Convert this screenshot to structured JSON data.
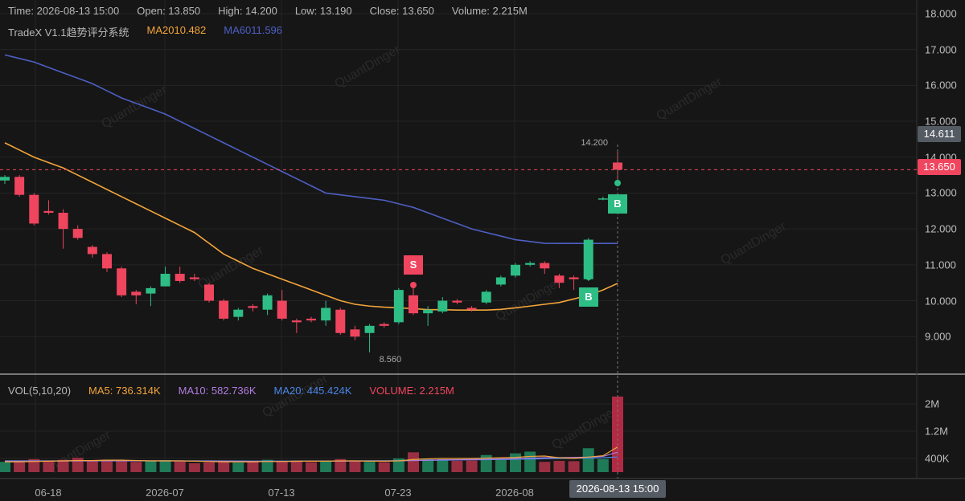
{
  "header": {
    "time_label": "Time: 2026-08-13 15:00",
    "open_label": "Open: 13.850",
    "high_label": "High: 14.200",
    "low_label": "Low: 13.190",
    "close_label": "Close: 13.650",
    "volume_label": "Volume: 2.215M"
  },
  "indicator": {
    "name": "TradeX V1.1趋势评分系统",
    "ma20_label": "MA20",
    "ma20_value": "10.482",
    "ma60_label": "MA60",
    "ma60_value": "11.596",
    "ma20_color": "#f4a53a",
    "ma60_color": "#4e5fc4"
  },
  "volume_header": {
    "name": "VOL(5,10,20)",
    "ma5": "MA5: 736.314K",
    "ma10": "MA10: 582.736K",
    "ma20": "MA20: 445.424K",
    "volume": "VOLUME: 2.215M",
    "ma5_color": "#f4a53a",
    "ma10_color": "#b17be0",
    "ma20_color": "#4a86e8",
    "volume_color": "#f0455e"
  },
  "price_axis": [
    "18.000",
    "17.000",
    "16.000",
    "15.000",
    "14.000",
    "13.000",
    "12.000",
    "11.000",
    "10.000",
    "9.000"
  ],
  "volume_axis": [
    "2M",
    "1.2M",
    "400K"
  ],
  "time_axis": [
    "06-18",
    "2026-07",
    "07-13",
    "07-23",
    "2026-08"
  ],
  "cursor_time": "2026-08-13 15:00",
  "high_tag": "14.611",
  "close_tag": "13.650",
  "high_marker": "14.200",
  "low_marker": "8.560",
  "signals": {
    "sell": "S",
    "buy": "B"
  },
  "watermark": "QuantDinger",
  "colors": {
    "up": "#2ebd85",
    "down": "#f0455e",
    "bg": "#161616",
    "grid": "#242424"
  },
  "chart_data": {
    "type": "candlestick",
    "price_range": [
      8.2,
      18.2
    ],
    "volume_range": [
      0,
      2400000
    ],
    "candles": [
      {
        "o": 13.35,
        "h": 13.5,
        "c": 13.45,
        "l": 13.25,
        "v": 300000
      },
      {
        "o": 13.45,
        "h": 13.5,
        "c": 12.95,
        "l": 12.9,
        "v": 290000
      },
      {
        "o": 12.95,
        "h": 13.0,
        "c": 12.15,
        "l": 12.1,
        "v": 380000
      },
      {
        "o": 12.5,
        "h": 12.8,
        "c": 12.45,
        "l": 12.4,
        "v": 310000
      },
      {
        "o": 12.45,
        "h": 12.55,
        "c": 12.0,
        "l": 11.45,
        "v": 360000
      },
      {
        "o": 12.0,
        "h": 12.1,
        "c": 11.75,
        "l": 11.7,
        "v": 420000
      },
      {
        "o": 11.5,
        "h": 11.55,
        "c": 11.3,
        "l": 11.2,
        "v": 330000
      },
      {
        "o": 11.3,
        "h": 11.35,
        "c": 10.9,
        "l": 10.8,
        "v": 360000
      },
      {
        "o": 10.9,
        "h": 10.95,
        "c": 10.15,
        "l": 10.1,
        "v": 350000
      },
      {
        "o": 10.25,
        "h": 10.3,
        "c": 10.15,
        "l": 9.9,
        "v": 300000
      },
      {
        "o": 10.2,
        "h": 10.4,
        "c": 10.35,
        "l": 9.85,
        "v": 340000
      },
      {
        "o": 10.4,
        "h": 10.95,
        "c": 10.75,
        "l": 10.4,
        "v": 350000
      },
      {
        "o": 10.75,
        "h": 10.95,
        "c": 10.55,
        "l": 10.5,
        "v": 310000
      },
      {
        "o": 10.65,
        "h": 10.75,
        "c": 10.6,
        "l": 10.55,
        "v": 260000
      },
      {
        "o": 10.45,
        "h": 10.5,
        "c": 10.0,
        "l": 9.95,
        "v": 290000
      },
      {
        "o": 10.0,
        "h": 10.05,
        "c": 9.5,
        "l": 9.45,
        "v": 310000
      },
      {
        "o": 9.55,
        "h": 9.8,
        "c": 9.75,
        "l": 9.45,
        "v": 280000
      },
      {
        "o": 9.85,
        "h": 9.9,
        "c": 9.8,
        "l": 9.7,
        "v": 320000
      },
      {
        "o": 9.75,
        "h": 10.2,
        "c": 10.15,
        "l": 9.6,
        "v": 360000
      },
      {
        "o": 10.0,
        "h": 10.3,
        "c": 9.5,
        "l": 9.45,
        "v": 300000
      },
      {
        "o": 9.45,
        "h": 9.5,
        "c": 9.4,
        "l": 9.1,
        "v": 340000
      },
      {
        "o": 9.5,
        "h": 9.55,
        "c": 9.45,
        "l": 9.4,
        "v": 290000
      },
      {
        "o": 9.45,
        "h": 10.0,
        "c": 9.8,
        "l": 9.3,
        "v": 320000
      },
      {
        "o": 9.75,
        "h": 9.8,
        "c": 9.1,
        "l": 9.05,
        "v": 380000
      },
      {
        "o": 9.2,
        "h": 9.3,
        "c": 9.0,
        "l": 8.9,
        "v": 330000
      },
      {
        "o": 9.1,
        "h": 9.35,
        "c": 9.3,
        "l": 8.56,
        "v": 300000
      },
      {
        "o": 9.35,
        "h": 9.4,
        "c": 9.3,
        "l": 9.25,
        "v": 290000
      },
      {
        "o": 9.4,
        "h": 10.35,
        "c": 10.3,
        "l": 9.35,
        "v": 400000
      },
      {
        "o": 10.15,
        "h": 10.45,
        "c": 9.65,
        "l": 9.6,
        "v": 580000
      },
      {
        "o": 9.65,
        "h": 9.85,
        "c": 9.75,
        "l": 9.3,
        "v": 380000
      },
      {
        "o": 9.7,
        "h": 10.1,
        "c": 10.0,
        "l": 9.65,
        "v": 380000
      },
      {
        "o": 10.0,
        "h": 10.05,
        "c": 9.95,
        "l": 9.9,
        "v": 330000
      },
      {
        "o": 9.8,
        "h": 9.85,
        "c": 9.75,
        "l": 9.7,
        "v": 340000
      },
      {
        "o": 9.95,
        "h": 10.3,
        "c": 10.25,
        "l": 9.9,
        "v": 500000
      },
      {
        "o": 10.45,
        "h": 10.7,
        "c": 10.65,
        "l": 10.4,
        "v": 380000
      },
      {
        "o": 10.7,
        "h": 11.05,
        "c": 11.0,
        "l": 10.65,
        "v": 550000
      },
      {
        "o": 11.0,
        "h": 11.1,
        "c": 11.05,
        "l": 10.95,
        "v": 600000
      },
      {
        "o": 11.05,
        "h": 11.1,
        "c": 10.9,
        "l": 10.75,
        "v": 300000
      },
      {
        "o": 10.7,
        "h": 10.75,
        "c": 10.5,
        "l": 10.35,
        "v": 330000
      },
      {
        "o": 10.65,
        "h": 10.7,
        "c": 10.6,
        "l": 10.3,
        "v": 320000
      },
      {
        "o": 10.6,
        "h": 11.75,
        "c": 11.7,
        "l": 10.55,
        "v": 700000
      },
      {
        "o": 12.85,
        "h": 12.9,
        "c": 12.85,
        "l": 12.8,
        "v": 380000
      },
      {
        "o": 13.85,
        "h": 14.2,
        "c": 13.65,
        "l": 13.19,
        "v": 2215000
      }
    ],
    "ma20": [
      14.4,
      14.2,
      14.0,
      13.85,
      13.7,
      13.5,
      13.3,
      13.1,
      12.9,
      12.7,
      12.5,
      12.3,
      12.1,
      11.9,
      11.6,
      11.3,
      11.1,
      10.9,
      10.75,
      10.6,
      10.45,
      10.3,
      10.15,
      10.0,
      9.9,
      9.85,
      9.82,
      9.8,
      9.78,
      9.75,
      9.75,
      9.74,
      9.74,
      9.74,
      9.76,
      9.8,
      9.85,
      9.9,
      9.95,
      10.05,
      10.15,
      10.3,
      10.482
    ],
    "ma60": [
      16.85,
      16.75,
      16.65,
      16.5,
      16.35,
      16.2,
      16.05,
      15.85,
      15.65,
      15.5,
      15.35,
      15.2,
      15.0,
      14.8,
      14.6,
      14.4,
      14.2,
      14.0,
      13.8,
      13.6,
      13.4,
      13.2,
      13.0,
      12.95,
      12.9,
      12.85,
      12.8,
      12.7,
      12.6,
      12.45,
      12.3,
      12.15,
      12.0,
      11.9,
      11.8,
      11.7,
      11.65,
      11.6,
      11.596,
      11.596,
      11.596,
      11.596,
      11.596
    ],
    "vol_ma5": [
      300000,
      300000,
      310000,
      320000,
      330000,
      340000,
      340000,
      350000,
      350000,
      340000,
      330000,
      330000,
      330000,
      320000,
      310000,
      300000,
      300000,
      300000,
      310000,
      310000,
      320000,
      320000,
      320000,
      330000,
      330000,
      320000,
      320000,
      330000,
      370000,
      390000,
      400000,
      400000,
      400000,
      410000,
      420000,
      430000,
      460000,
      470000,
      420000,
      400000,
      440000,
      480000,
      736314
    ],
    "vol_ma10": [
      320000,
      320000,
      320000,
      325000,
      325000,
      330000,
      330000,
      335000,
      335000,
      335000,
      330000,
      330000,
      330000,
      325000,
      320000,
      320000,
      315000,
      315000,
      315000,
      315000,
      315000,
      320000,
      320000,
      320000,
      325000,
      325000,
      325000,
      330000,
      340000,
      350000,
      360000,
      365000,
      370000,
      375000,
      385000,
      395000,
      410000,
      420000,
      425000,
      430000,
      440000,
      460000,
      582736
    ],
    "vol_ma20": [
      330000,
      330000,
      330000,
      330000,
      330000,
      330000,
      330000,
      330000,
      330000,
      330000,
      330000,
      330000,
      330000,
      330000,
      330000,
      328000,
      326000,
      325000,
      325000,
      325000,
      325000,
      326000,
      327000,
      328000,
      330000,
      332000,
      334000,
      336000,
      340000,
      345000,
      350000,
      355000,
      360000,
      365000,
      370000,
      375000,
      382000,
      390000,
      398000,
      405000,
      412000,
      420000,
      445424
    ]
  }
}
